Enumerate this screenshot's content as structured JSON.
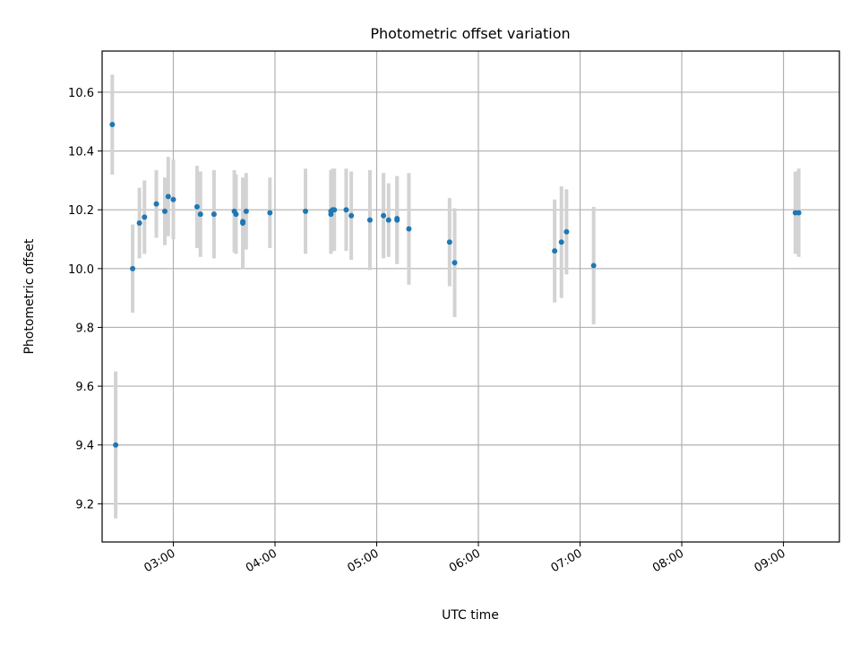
{
  "chart_data": {
    "type": "scatter",
    "title": "Photometric offset variation",
    "xlabel": "UTC time",
    "ylabel": "Photometric offset",
    "grid": true,
    "legend": "none",
    "xlim": [
      "02:18",
      "09:33"
    ],
    "ylim": [
      9.07,
      10.74
    ],
    "x_ticks": [
      "03:00",
      "04:00",
      "05:00",
      "06:00",
      "07:00",
      "08:00",
      "09:00"
    ],
    "y_ticks": [
      "9.2",
      "9.4",
      "9.6",
      "9.8",
      "10.0",
      "10.2",
      "10.4",
      "10.6"
    ],
    "colors": {
      "marker": "#1f77b4",
      "errorbar": "#d3d3d3",
      "grid": "#b0b0b0"
    },
    "series": [
      {
        "points": [
          {
            "x": "02:24",
            "y": 10.49,
            "yerr": 0.17
          },
          {
            "x": "02:26",
            "y": 9.4,
            "yerr": 0.25
          },
          {
            "x": "02:36",
            "y": 10.0,
            "yerr": 0.15
          },
          {
            "x": "02:40",
            "y": 10.155,
            "yerr": 0.12
          },
          {
            "x": "02:43",
            "y": 10.175,
            "yerr": 0.125
          },
          {
            "x": "02:50",
            "y": 10.22,
            "yerr": 0.115
          },
          {
            "x": "02:55",
            "y": 10.195,
            "yerr": 0.115
          },
          {
            "x": "02:57",
            "y": 10.245,
            "yerr": 0.135
          },
          {
            "x": "03:00",
            "y": 10.235,
            "yerr": 0.135
          },
          {
            "x": "03:14",
            "y": 10.21,
            "yerr": 0.14
          },
          {
            "x": "03:16",
            "y": 10.185,
            "yerr": 0.145
          },
          {
            "x": "03:24",
            "y": 10.185,
            "yerr": 0.15
          },
          {
            "x": "03:36",
            "y": 10.195,
            "yerr": 0.14
          },
          {
            "x": "03:37",
            "y": 10.185,
            "yerr": 0.135
          },
          {
            "x": "03:41",
            "y": 10.155,
            "yerr": 0.155
          },
          {
            "x": "03:41",
            "y": 10.16,
            "yerr": 0.13
          },
          {
            "x": "03:43",
            "y": 10.195,
            "yerr": 0.13
          },
          {
            "x": "03:57",
            "y": 10.19,
            "yerr": 0.12
          },
          {
            "x": "04:18",
            "y": 10.195,
            "yerr": 0.145
          },
          {
            "x": "04:33",
            "y": 10.195,
            "yerr": 0.14
          },
          {
            "x": "04:33",
            "y": 10.185,
            "yerr": 0.135
          },
          {
            "x": "04:34",
            "y": 10.2,
            "yerr": 0.14
          },
          {
            "x": "04:35",
            "y": 10.2,
            "yerr": 0.14
          },
          {
            "x": "04:42",
            "y": 10.2,
            "yerr": 0.14
          },
          {
            "x": "04:45",
            "y": 10.18,
            "yerr": 0.15
          },
          {
            "x": "04:56",
            "y": 10.165,
            "yerr": 0.17
          },
          {
            "x": "05:04",
            "y": 10.18,
            "yerr": 0.145
          },
          {
            "x": "05:07",
            "y": 10.165,
            "yerr": 0.125
          },
          {
            "x": "05:12",
            "y": 10.165,
            "yerr": 0.15
          },
          {
            "x": "05:12",
            "y": 10.17,
            "yerr": 0.145
          },
          {
            "x": "05:19",
            "y": 10.135,
            "yerr": 0.19
          },
          {
            "x": "05:43",
            "y": 10.09,
            "yerr": 0.15
          },
          {
            "x": "05:46",
            "y": 10.02,
            "yerr": 0.185
          },
          {
            "x": "06:45",
            "y": 10.06,
            "yerr": 0.175
          },
          {
            "x": "06:49",
            "y": 10.09,
            "yerr": 0.19
          },
          {
            "x": "06:52",
            "y": 10.125,
            "yerr": 0.145
          },
          {
            "x": "07:08",
            "y": 10.01,
            "yerr": 0.2
          },
          {
            "x": "09:07",
            "y": 10.19,
            "yerr": 0.14
          },
          {
            "x": "09:09",
            "y": 10.19,
            "yerr": 0.15
          }
        ]
      }
    ]
  }
}
